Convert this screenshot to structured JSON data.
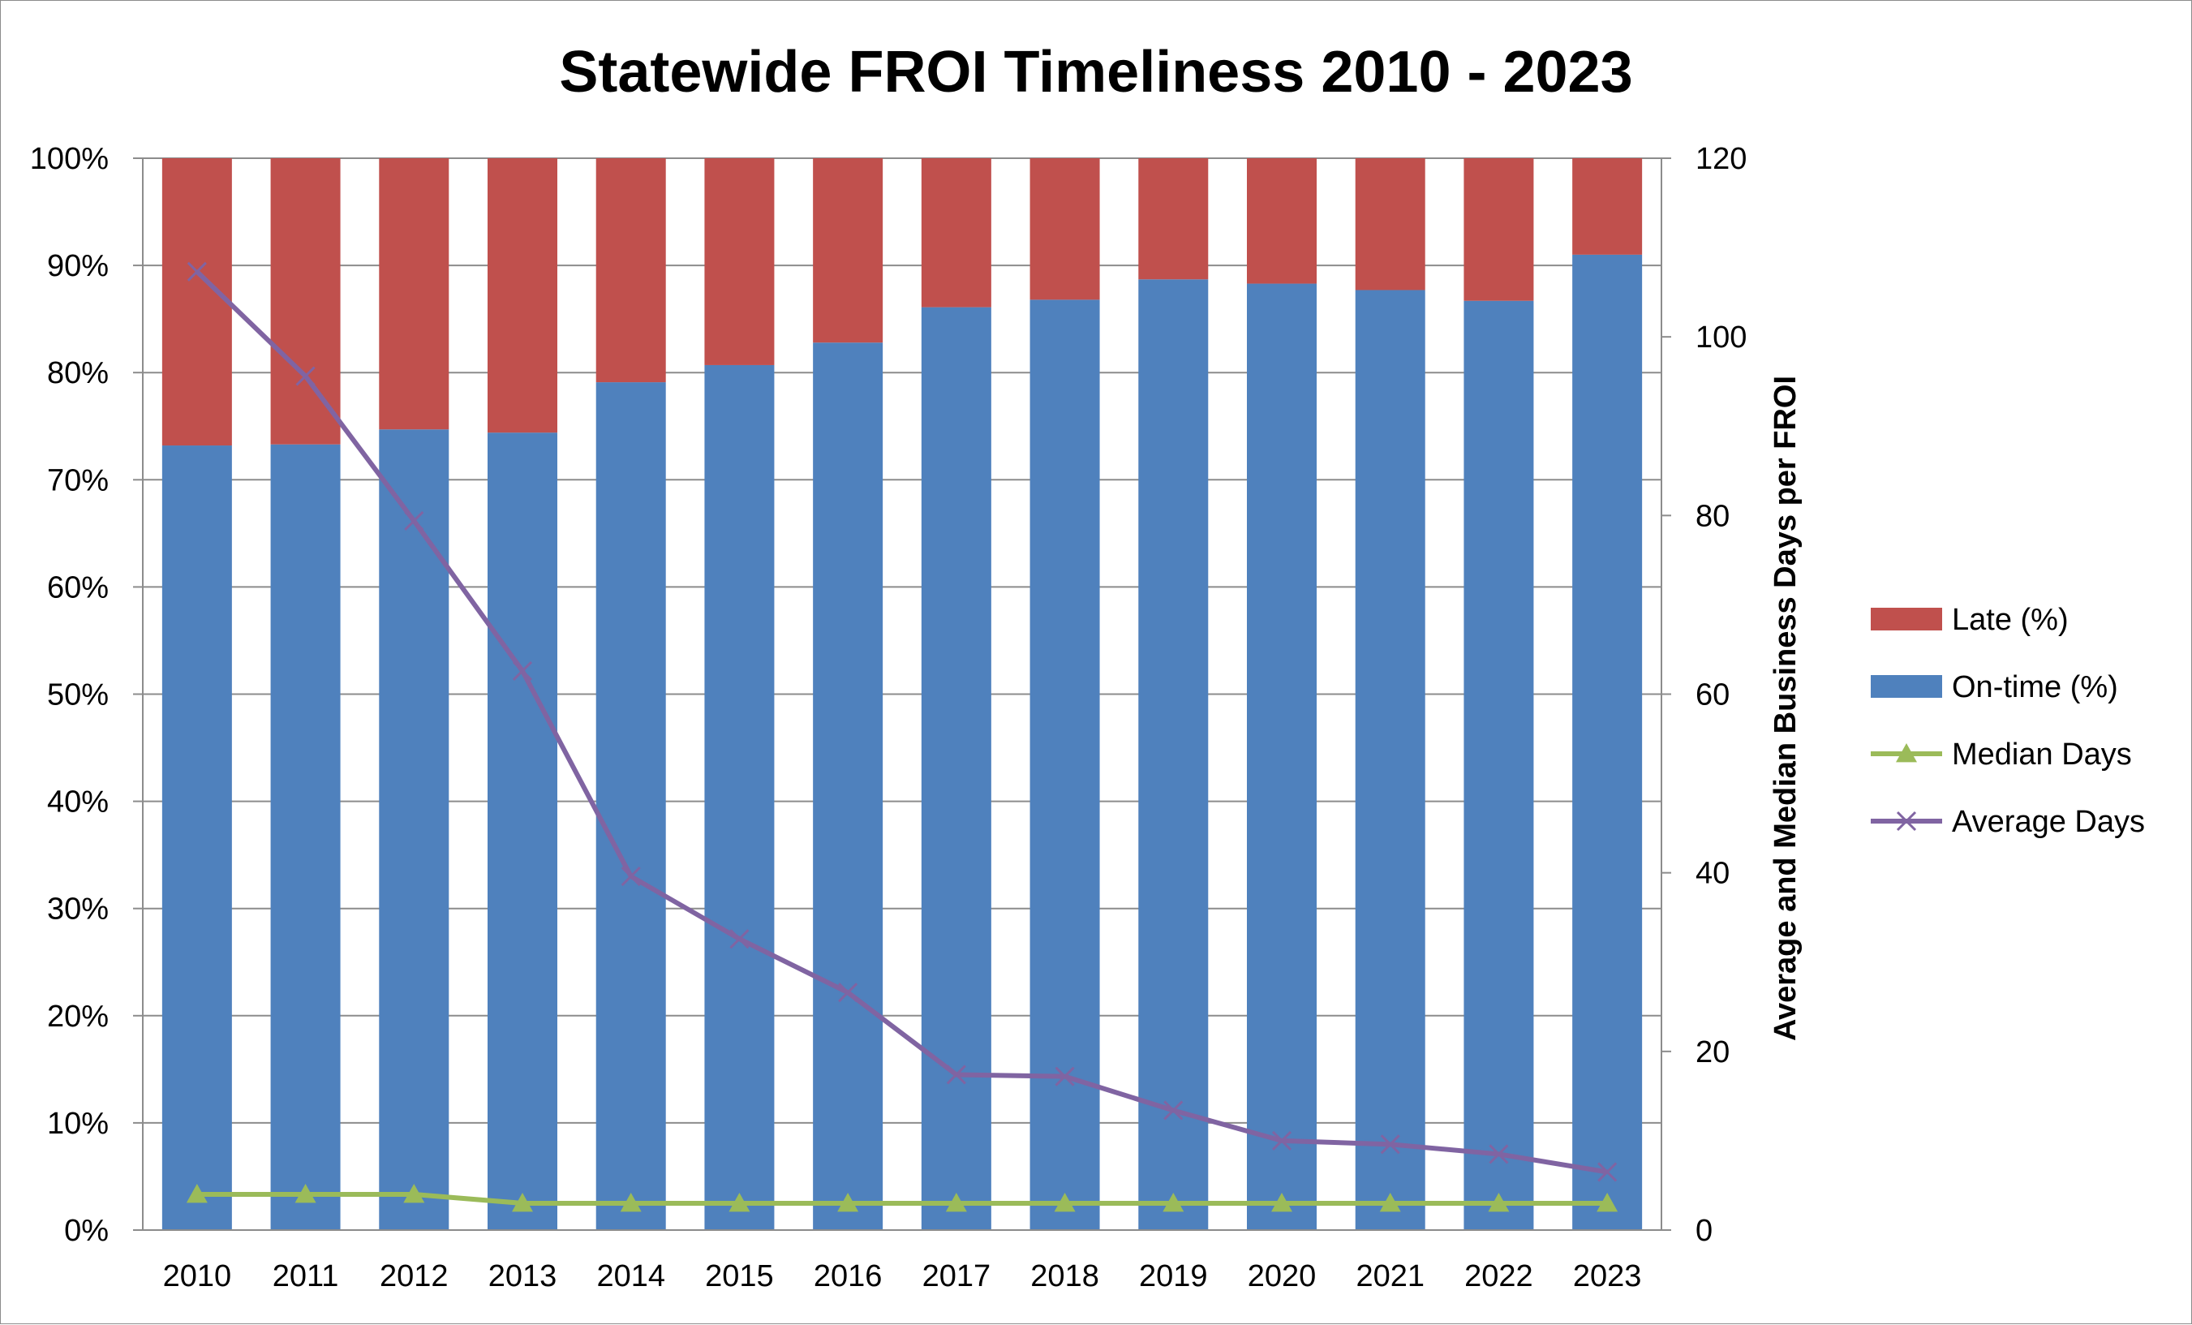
{
  "chart_data": {
    "type": "bar",
    "stacked": true,
    "title": "Statewide FROI Timeliness 2010 - 2023",
    "xlabel": "",
    "ylabel": "",
    "y2label": "Average and Median Business Days per FROI",
    "categories": [
      "2010",
      "2011",
      "2012",
      "2013",
      "2014",
      "2015",
      "2016",
      "2017",
      "2018",
      "2019",
      "2020",
      "2021",
      "2022",
      "2023"
    ],
    "ylim": [
      0,
      100
    ],
    "y2lim": [
      0,
      120
    ],
    "y_ticks": [
      "0%",
      "10%",
      "20%",
      "30%",
      "40%",
      "50%",
      "60%",
      "70%",
      "80%",
      "90%",
      "100%"
    ],
    "y2_ticks": [
      "0",
      "20",
      "40",
      "60",
      "80",
      "100",
      "120"
    ],
    "grid": true,
    "legend_position": "right",
    "series": [
      {
        "name": "On-time (%)",
        "type": "bar",
        "axis": "left",
        "color": "#4f81bd",
        "values": [
          73.2,
          73.3,
          74.7,
          74.4,
          79.1,
          80.7,
          82.8,
          86.1,
          86.8,
          88.7,
          88.3,
          87.7,
          86.7,
          91.0
        ]
      },
      {
        "name": "Late (%)",
        "type": "bar",
        "axis": "left",
        "color": "#c0504d",
        "values": [
          26.8,
          26.7,
          25.3,
          25.6,
          20.9,
          19.3,
          17.2,
          13.9,
          13.2,
          11.3,
          11.7,
          12.3,
          13.3,
          9.0
        ]
      },
      {
        "name": "Median Days",
        "type": "line",
        "axis": "right",
        "marker": "triangle",
        "color": "#9bbb59",
        "values": [
          4,
          4,
          4,
          3,
          3,
          3,
          3,
          3,
          3,
          3,
          3,
          3,
          3,
          3
        ]
      },
      {
        "name": "Average Days",
        "type": "line",
        "axis": "right",
        "marker": "x",
        "color": "#8064a2",
        "values": [
          107.3,
          95.6,
          79.4,
          62.6,
          39.6,
          32.6,
          26.6,
          17.4,
          17.2,
          13.4,
          10.0,
          9.6,
          8.5,
          6.5
        ]
      }
    ],
    "legend": [
      {
        "label": "Late (%)",
        "symbol": "bar",
        "color": "#c0504d"
      },
      {
        "label": "On-time (%)",
        "symbol": "bar",
        "color": "#4f81bd"
      },
      {
        "label": "Median Days",
        "symbol": "line-triangle",
        "color": "#9bbb59"
      },
      {
        "label": "Average Days",
        "symbol": "line-x",
        "color": "#8064a2"
      }
    ]
  }
}
